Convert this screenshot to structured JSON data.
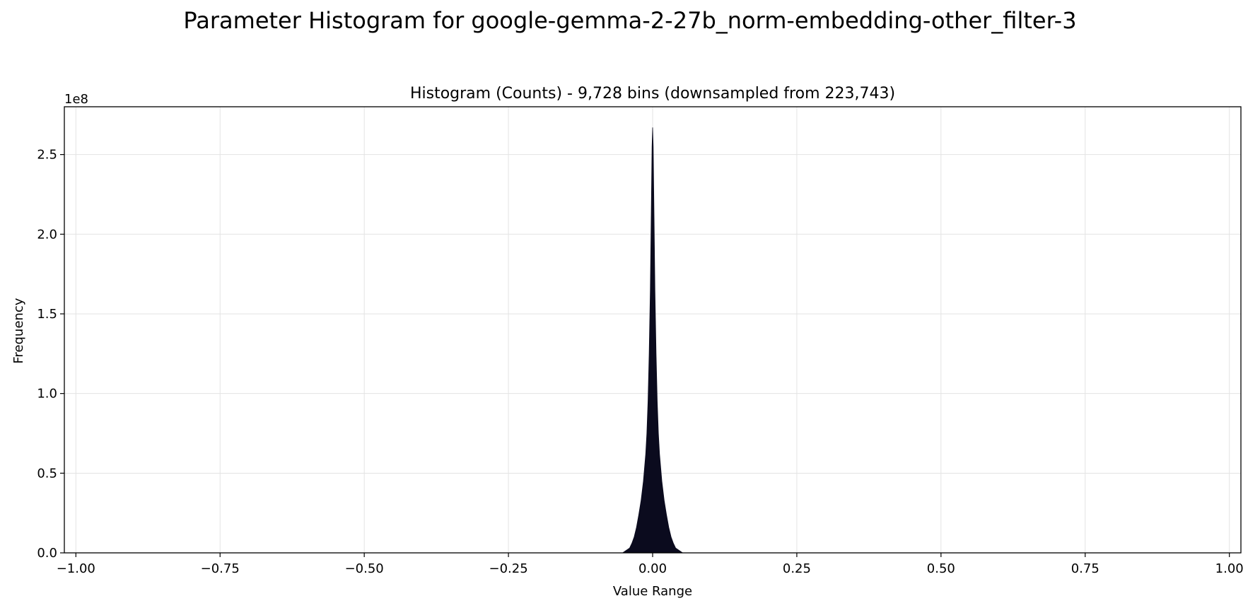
{
  "figure": {
    "suptitle": "Parameter Histogram for google-gemma-2-27b_norm-embedding-other_filter-3"
  },
  "chart_data": {
    "type": "histogram",
    "title": "Histogram (Counts) - 9,728 bins (downsampled from 223,743)",
    "xlabel": "Value Range",
    "ylabel": "Frequency",
    "y_offset_label": "1e8",
    "xlim": [
      -1.02,
      1.02
    ],
    "ylim": [
      0,
      2.8
    ],
    "y_unit": "1e8",
    "x_ticks": [
      -1.0,
      -0.75,
      -0.5,
      -0.25,
      0.0,
      0.25,
      0.5,
      0.75,
      1.0
    ],
    "x_tick_labels": [
      "−1.00",
      "−0.75",
      "−0.50",
      "−0.25",
      "0.00",
      "0.25",
      "0.50",
      "0.75",
      "1.00"
    ],
    "y_ticks": [
      0.0,
      0.5,
      1.0,
      1.5,
      2.0,
      2.5
    ],
    "y_tick_labels": [
      "0.0",
      "0.5",
      "1.0",
      "1.5",
      "2.0",
      "2.5"
    ],
    "grid": true,
    "bar_color": "#0b0b1e",
    "points": {
      "x": [
        -0.052,
        -0.048,
        -0.044,
        -0.04,
        -0.036,
        -0.032,
        -0.028,
        -0.024,
        -0.02,
        -0.016,
        -0.012,
        -0.01,
        -0.008,
        -0.006,
        -0.004,
        -0.003,
        -0.002,
        -0.001,
        0.0,
        0.001,
        0.002,
        0.003,
        0.004,
        0.006,
        0.008,
        0.01,
        0.012,
        0.016,
        0.02,
        0.024,
        0.028,
        0.032,
        0.036,
        0.04,
        0.044,
        0.048,
        0.052
      ],
      "y": [
        0.0,
        0.01,
        0.02,
        0.03,
        0.06,
        0.1,
        0.16,
        0.24,
        0.33,
        0.45,
        0.62,
        0.75,
        0.95,
        1.25,
        1.65,
        1.95,
        2.25,
        2.55,
        2.67,
        2.55,
        2.25,
        1.95,
        1.65,
        1.25,
        0.95,
        0.75,
        0.62,
        0.45,
        0.33,
        0.24,
        0.16,
        0.1,
        0.06,
        0.03,
        0.02,
        0.01,
        0.0
      ]
    }
  }
}
